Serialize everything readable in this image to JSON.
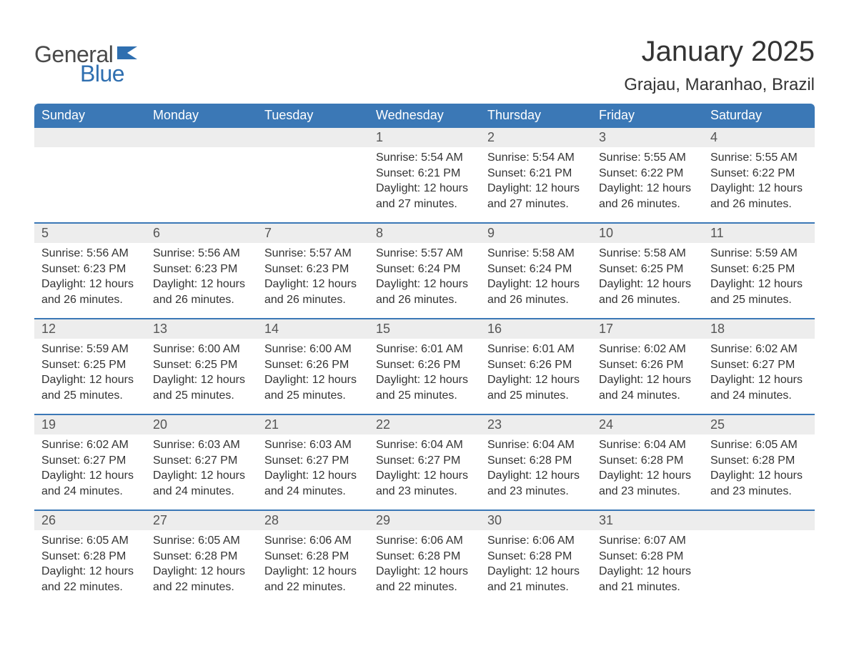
{
  "logo": {
    "word1": "General",
    "word2": "Blue",
    "word1_color": "#4a4a4a",
    "word2_color": "#2f6fb0",
    "flag_color": "#2f6fb0"
  },
  "title": "January 2025",
  "location": "Grajau, Maranhao, Brazil",
  "colors": {
    "header_bg": "#3b78b6",
    "header_text": "#ffffff",
    "daynum_bg": "#ededed",
    "daynum_text": "#555555",
    "body_text": "#333333",
    "week_divider": "#3b78b6",
    "page_bg": "#ffffff"
  },
  "fonts": {
    "family": "Arial",
    "title_size_pt": 30,
    "location_size_pt": 18,
    "header_size_pt": 14,
    "daynum_size_pt": 14,
    "body_size_pt": 12
  },
  "day_headers": [
    "Sunday",
    "Monday",
    "Tuesday",
    "Wednesday",
    "Thursday",
    "Friday",
    "Saturday"
  ],
  "labels": {
    "sunrise": "Sunrise: ",
    "sunset": "Sunset: ",
    "daylight": "Daylight: "
  },
  "weeks": [
    [
      {
        "empty": true
      },
      {
        "empty": true
      },
      {
        "empty": true
      },
      {
        "num": "1",
        "sunrise": "5:54 AM",
        "sunset": "6:21 PM",
        "daylight": "12 hours and 27 minutes."
      },
      {
        "num": "2",
        "sunrise": "5:54 AM",
        "sunset": "6:21 PM",
        "daylight": "12 hours and 27 minutes."
      },
      {
        "num": "3",
        "sunrise": "5:55 AM",
        "sunset": "6:22 PM",
        "daylight": "12 hours and 26 minutes."
      },
      {
        "num": "4",
        "sunrise": "5:55 AM",
        "sunset": "6:22 PM",
        "daylight": "12 hours and 26 minutes."
      }
    ],
    [
      {
        "num": "5",
        "sunrise": "5:56 AM",
        "sunset": "6:23 PM",
        "daylight": "12 hours and 26 minutes."
      },
      {
        "num": "6",
        "sunrise": "5:56 AM",
        "sunset": "6:23 PM",
        "daylight": "12 hours and 26 minutes."
      },
      {
        "num": "7",
        "sunrise": "5:57 AM",
        "sunset": "6:23 PM",
        "daylight": "12 hours and 26 minutes."
      },
      {
        "num": "8",
        "sunrise": "5:57 AM",
        "sunset": "6:24 PM",
        "daylight": "12 hours and 26 minutes."
      },
      {
        "num": "9",
        "sunrise": "5:58 AM",
        "sunset": "6:24 PM",
        "daylight": "12 hours and 26 minutes."
      },
      {
        "num": "10",
        "sunrise": "5:58 AM",
        "sunset": "6:25 PM",
        "daylight": "12 hours and 26 minutes."
      },
      {
        "num": "11",
        "sunrise": "5:59 AM",
        "sunset": "6:25 PM",
        "daylight": "12 hours and 25 minutes."
      }
    ],
    [
      {
        "num": "12",
        "sunrise": "5:59 AM",
        "sunset": "6:25 PM",
        "daylight": "12 hours and 25 minutes."
      },
      {
        "num": "13",
        "sunrise": "6:00 AM",
        "sunset": "6:25 PM",
        "daylight": "12 hours and 25 minutes."
      },
      {
        "num": "14",
        "sunrise": "6:00 AM",
        "sunset": "6:26 PM",
        "daylight": "12 hours and 25 minutes."
      },
      {
        "num": "15",
        "sunrise": "6:01 AM",
        "sunset": "6:26 PM",
        "daylight": "12 hours and 25 minutes."
      },
      {
        "num": "16",
        "sunrise": "6:01 AM",
        "sunset": "6:26 PM",
        "daylight": "12 hours and 25 minutes."
      },
      {
        "num": "17",
        "sunrise": "6:02 AM",
        "sunset": "6:26 PM",
        "daylight": "12 hours and 24 minutes."
      },
      {
        "num": "18",
        "sunrise": "6:02 AM",
        "sunset": "6:27 PM",
        "daylight": "12 hours and 24 minutes."
      }
    ],
    [
      {
        "num": "19",
        "sunrise": "6:02 AM",
        "sunset": "6:27 PM",
        "daylight": "12 hours and 24 minutes."
      },
      {
        "num": "20",
        "sunrise": "6:03 AM",
        "sunset": "6:27 PM",
        "daylight": "12 hours and 24 minutes."
      },
      {
        "num": "21",
        "sunrise": "6:03 AM",
        "sunset": "6:27 PM",
        "daylight": "12 hours and 24 minutes."
      },
      {
        "num": "22",
        "sunrise": "6:04 AM",
        "sunset": "6:27 PM",
        "daylight": "12 hours and 23 minutes."
      },
      {
        "num": "23",
        "sunrise": "6:04 AM",
        "sunset": "6:28 PM",
        "daylight": "12 hours and 23 minutes."
      },
      {
        "num": "24",
        "sunrise": "6:04 AM",
        "sunset": "6:28 PM",
        "daylight": "12 hours and 23 minutes."
      },
      {
        "num": "25",
        "sunrise": "6:05 AM",
        "sunset": "6:28 PM",
        "daylight": "12 hours and 23 minutes."
      }
    ],
    [
      {
        "num": "26",
        "sunrise": "6:05 AM",
        "sunset": "6:28 PM",
        "daylight": "12 hours and 22 minutes."
      },
      {
        "num": "27",
        "sunrise": "6:05 AM",
        "sunset": "6:28 PM",
        "daylight": "12 hours and 22 minutes."
      },
      {
        "num": "28",
        "sunrise": "6:06 AM",
        "sunset": "6:28 PM",
        "daylight": "12 hours and 22 minutes."
      },
      {
        "num": "29",
        "sunrise": "6:06 AM",
        "sunset": "6:28 PM",
        "daylight": "12 hours and 22 minutes."
      },
      {
        "num": "30",
        "sunrise": "6:06 AM",
        "sunset": "6:28 PM",
        "daylight": "12 hours and 21 minutes."
      },
      {
        "num": "31",
        "sunrise": "6:07 AM",
        "sunset": "6:28 PM",
        "daylight": "12 hours and 21 minutes."
      },
      {
        "empty": true
      }
    ]
  ]
}
